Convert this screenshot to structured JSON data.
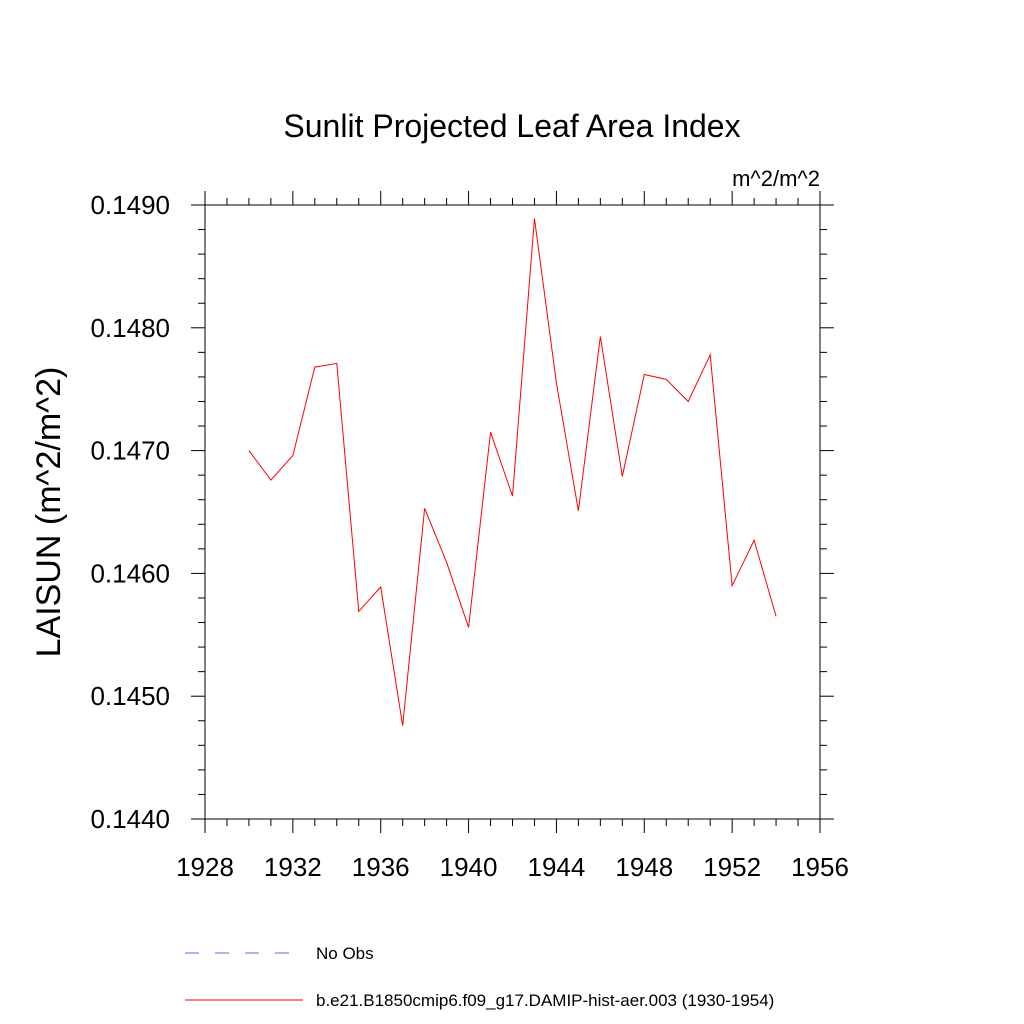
{
  "chart_data": {
    "type": "line",
    "title": "Sunlit Projected Leaf Area Index",
    "units": "m^2/m^2",
    "ylabel": "LAISUN  (m^2/m^2)",
    "xlabel": "",
    "xlim": [
      1928,
      1956
    ],
    "ylim": [
      0.144,
      0.149
    ],
    "xticks": [
      1928,
      1932,
      1936,
      1940,
      1944,
      1948,
      1952,
      1956
    ],
    "xtick_labels": [
      "1928",
      "1932",
      "1936",
      "1940",
      "1944",
      "1948",
      "1952",
      "1956"
    ],
    "yticks": [
      0.144,
      0.145,
      0.146,
      0.147,
      0.148,
      0.149
    ],
    "ytick_labels": [
      "0.1440",
      "0.1450",
      "0.1460",
      "0.1470",
      "0.1480",
      "0.1490"
    ],
    "grid": false,
    "legend_placement": "bottom",
    "legend": [
      {
        "label": "No Obs",
        "color": "#6a6acd",
        "style": "dashed"
      },
      {
        "label": "b.e21.B1850cmip6.f09_g17.DAMIP-hist-aer.003 (1930-1954)",
        "color": "#ff0000",
        "style": "solid"
      }
    ],
    "series": [
      {
        "name": "b.e21.B1850cmip6.f09_g17.DAMIP-hist-aer.003 (1930-1954)",
        "color": "#ff0000",
        "x": [
          1930,
          1931,
          1932,
          1933,
          1934,
          1935,
          1936,
          1937,
          1938,
          1939,
          1940,
          1941,
          1942,
          1943,
          1944,
          1945,
          1946,
          1947,
          1948,
          1949,
          1950,
          1951,
          1952,
          1953,
          1954
        ],
        "y": [
          0.147,
          0.14676,
          0.14696,
          0.14768,
          0.14771,
          0.14569,
          0.14589,
          0.14476,
          0.14653,
          0.14609,
          0.14556,
          0.14715,
          0.14663,
          0.14889,
          0.14755,
          0.14651,
          0.14793,
          0.14679,
          0.14762,
          0.14758,
          0.1474,
          0.14778,
          0.1459,
          0.14627,
          0.14565
        ]
      }
    ]
  }
}
